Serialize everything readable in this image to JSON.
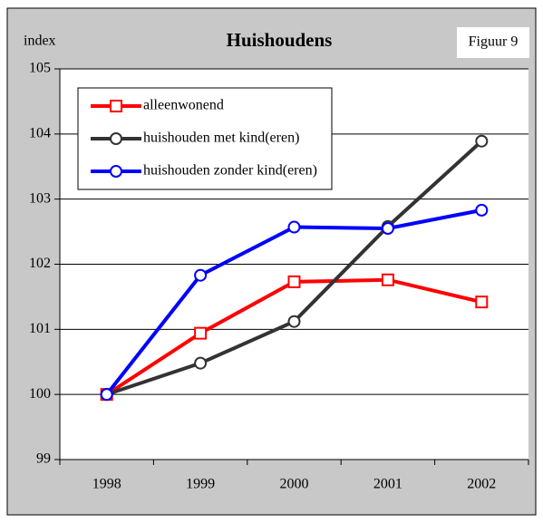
{
  "chart_data": {
    "type": "line",
    "title": "Huishoudens",
    "ylabel": "index",
    "annotation": "Figuur 9",
    "categories": [
      "1998",
      "1999",
      "2000",
      "2001",
      "2002"
    ],
    "series": [
      {
        "name": "alleenwonend",
        "color": "#ff0000",
        "marker": "square",
        "values": [
          100,
          100.94,
          101.73,
          101.76,
          101.42
        ]
      },
      {
        "name": "huishouden met kind(eren)",
        "color": "#333333",
        "marker": "circle",
        "values": [
          100,
          100.48,
          101.12,
          102.58,
          103.89
        ]
      },
      {
        "name": "huishouden zonder kind(eren)",
        "color": "#0000ff",
        "marker": "circle",
        "values": [
          100,
          101.83,
          102.57,
          102.55,
          102.83
        ]
      }
    ],
    "ylim": [
      99,
      105
    ],
    "yticks": [
      99,
      100,
      101,
      102,
      103,
      104,
      105
    ],
    "grid": true,
    "legend": "upper left"
  }
}
